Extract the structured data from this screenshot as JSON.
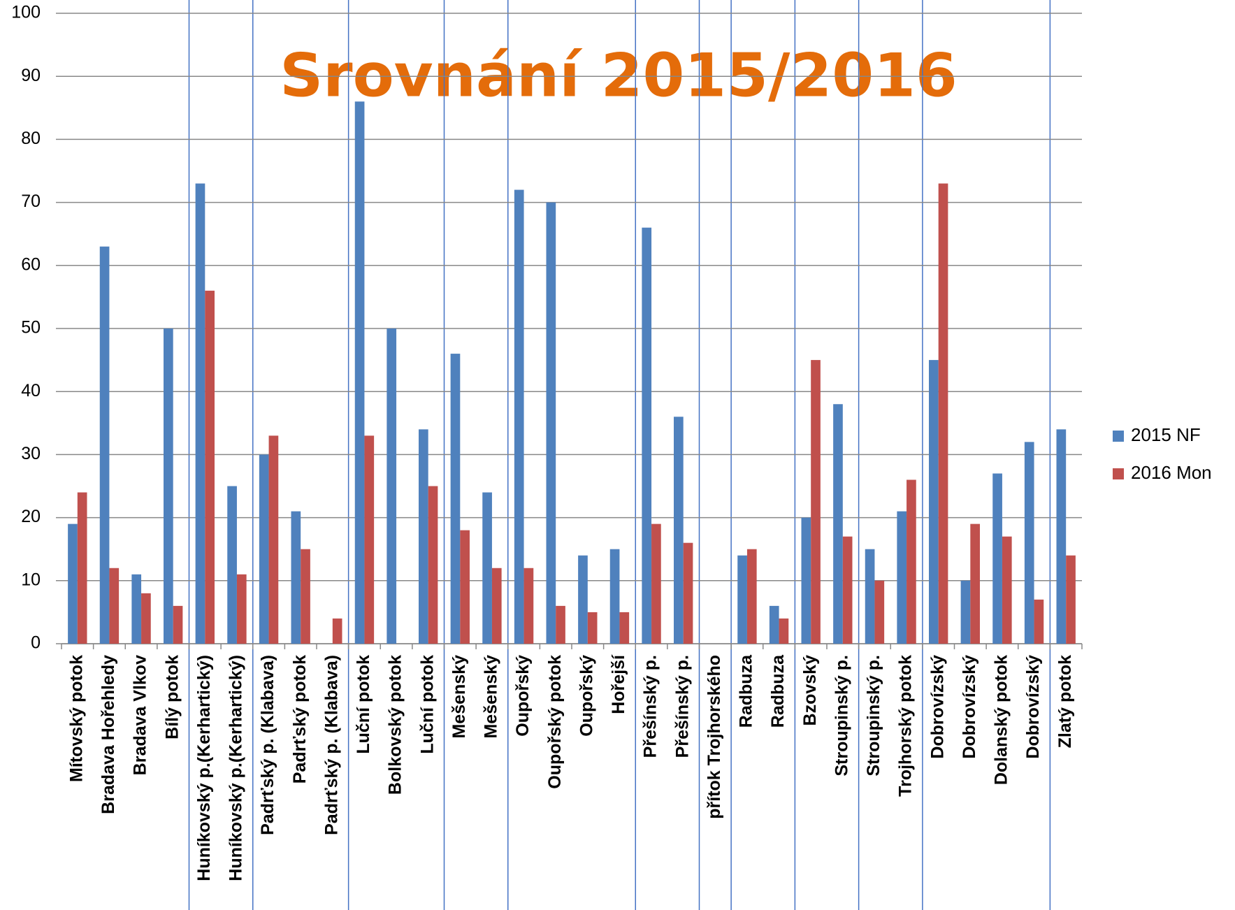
{
  "chart_data": {
    "type": "bar",
    "title": "Srovnání 2015/2016",
    "categories": [
      "Mítovský potok",
      "Bradava Hořehledy",
      "Bradava Vlkov",
      "Bílý potok",
      "Huníkovský p.(Kerhartický)",
      "Huníkovský p.(Kerhartický)",
      "Padrťský p. (Klabava)",
      "Padrťský potok",
      "Padrťský p. (Klabava)",
      "Luční potok",
      "Bolkovský potok",
      "Luční potok",
      "Mešenský",
      "Mešenský",
      "Oupořský",
      "Oupořský potok",
      "Oupořský",
      "Hořejší",
      "Přešínský p.",
      "Přešínský p.",
      "přítok Trojhorského",
      "Radbuza",
      "Radbuza",
      "Bzovský",
      "Stroupinský p.",
      "Stroupinský p.",
      "Trojhorský potok",
      "Dobrovízský",
      "Dobrovízský",
      "Dolanský potok",
      "Dobrovízský",
      "Zlatý potok"
    ],
    "series": [
      {
        "name": "2015 NF",
        "color": "#4F81BD",
        "values": [
          19,
          63,
          11,
          50,
          73,
          25,
          30,
          21,
          null,
          86,
          50,
          34,
          46,
          24,
          72,
          70,
          14,
          15,
          66,
          36,
          null,
          14,
          6,
          20,
          38,
          15,
          21,
          45,
          10,
          27,
          32,
          34
        ]
      },
      {
        "name": "2016 Mon",
        "color": "#C0504D",
        "values": [
          24,
          12,
          8,
          6,
          56,
          11,
          33,
          15,
          4,
          33,
          null,
          25,
          18,
          12,
          12,
          6,
          5,
          5,
          19,
          16,
          null,
          15,
          4,
          45,
          17,
          10,
          26,
          73,
          19,
          17,
          7,
          14
        ]
      }
    ],
    "ylim": [
      0,
      100
    ],
    "yticks": [
      0,
      10,
      20,
      30,
      40,
      50,
      60,
      70,
      80,
      90,
      100
    ],
    "grid": true,
    "legend": "right"
  }
}
